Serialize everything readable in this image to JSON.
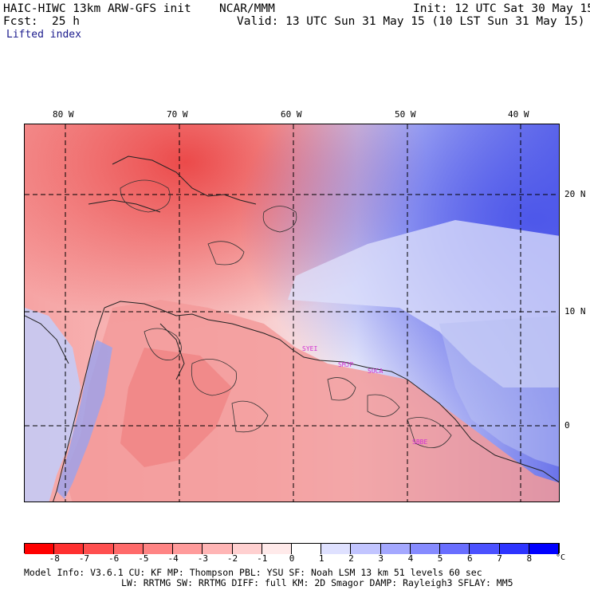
{
  "header": {
    "model": "HAIC-HIWC 13km ARW-GFS init",
    "org": "NCAR/MMM",
    "init": "Init: 12 UTC Sat 30 May 15",
    "fcst_label": "Fcst:",
    "fcst_value": "25 h",
    "valid": "Valid: 13 UTC Sun 31 May 15 (10 LST Sun 31 May 15)",
    "field": "Lifted index"
  },
  "map": {
    "lon_labels": [
      "80 W",
      "70 W",
      "60 W",
      "50 W",
      "40 W"
    ],
    "lat_labels": [
      "20 N",
      "10 N",
      "0"
    ],
    "stations": [
      "SYEI",
      "SMJP",
      "SOCA",
      "SBBE"
    ],
    "colors": {
      "strong_unstable": "#ef4a4a",
      "unstable": "#f7a9a9",
      "neutral": "#fbe3e3",
      "stable": "#c9cff6",
      "strong_stable": "#6a73ea"
    }
  },
  "colorbar": {
    "ticks": [
      "-8",
      "-7",
      "-6",
      "-5",
      "-4",
      "-3",
      "-2",
      "-1",
      "0",
      "1",
      "2",
      "3",
      "4",
      "5",
      "6",
      "7",
      "8"
    ],
    "unit": "°C",
    "colors": [
      "#ff0000",
      "#ff3030",
      "#ff4f4f",
      "#ff6a6a",
      "#ff8484",
      "#ff9b9b",
      "#ffb5b5",
      "#ffd0d0",
      "#ffeaea",
      "#ffffff",
      "#dfe1ff",
      "#c2c5ff",
      "#a4a8ff",
      "#868bff",
      "#696eff",
      "#4b51ff",
      "#2d34ff",
      "#0000ff"
    ]
  },
  "footer": {
    "line1": "Model Info: V3.6.1    CU: KF      MP: Thompson    PBL: YSU      SF: Noah LSM     13 km    51 levels   60 sec",
    "line2": "LW: RRTMG    SW: RRTMG  DIFF: full    KM: 2D Smagor DAMP: Rayleigh3   SFLAY: MM5"
  }
}
